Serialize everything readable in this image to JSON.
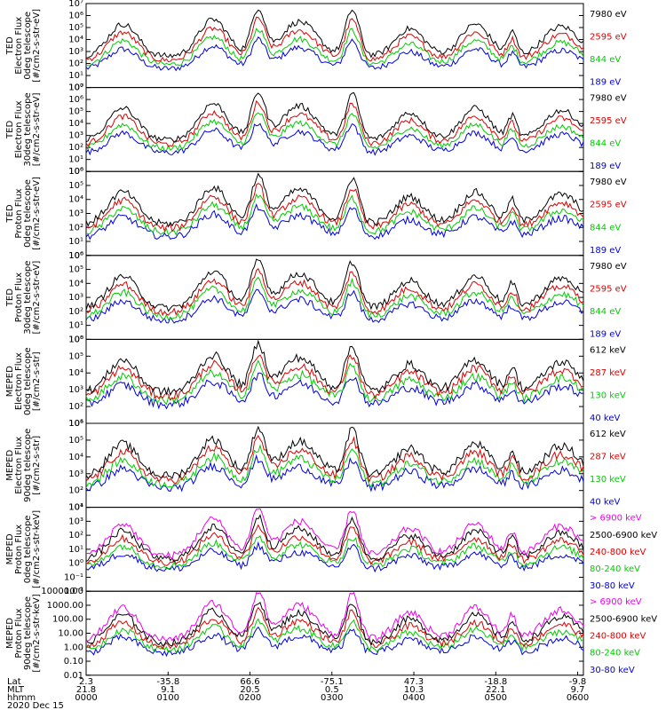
{
  "chart_data": {
    "type": "line",
    "date_label": "2020 Dec 15",
    "x_axis": {
      "rows": [
        {
          "name": "Lat",
          "values": [
            "2.3",
            "-35.8",
            "66.6",
            "-75.1",
            "47.3",
            "-18.8",
            "-9.8"
          ]
        },
        {
          "name": "MLT",
          "values": [
            "21.8",
            "9.1",
            "20.5",
            "0.5",
            "10.3",
            "22.1",
            "9.7"
          ]
        },
        {
          "name": "hhmm",
          "values": [
            "0000",
            "0100",
            "0200",
            "0300",
            "0400",
            "0500",
            "0600"
          ]
        }
      ],
      "hours": [
        0,
        1,
        2,
        3,
        4,
        5,
        6
      ]
    },
    "panels": [
      {
        "ylabel": [
          "TED",
          "Electron Flux",
          "0deg telescope",
          "[#/cm2-s-str-eV]"
        ],
        "scale": "log",
        "ylim_exp": [
          0,
          7
        ],
        "ticks": [
          "10⁰",
          "10¹",
          "10²",
          "10³",
          "10⁴",
          "10⁵",
          "10⁶",
          "10⁷"
        ],
        "series": [
          {
            "name": "7980 eV",
            "color": "#000000"
          },
          {
            "name": "2595 eV",
            "color": "#dd0000"
          },
          {
            "name": "844 eV",
            "color": "#00cc00"
          },
          {
            "name": "189 eV",
            "color": "#0000dd"
          }
        ]
      },
      {
        "ylabel": [
          "TED",
          "Electron Flux",
          "30deg telescope",
          "[#/cm2-s-str-eV]"
        ],
        "scale": "log",
        "ylim_exp": [
          0,
          7
        ],
        "ticks": [
          "10⁰",
          "10¹",
          "10²",
          "10³",
          "10⁴",
          "10⁵",
          "10⁶",
          "10⁷"
        ],
        "series": [
          {
            "name": "7980 eV",
            "color": "#000000"
          },
          {
            "name": "2595 eV",
            "color": "#dd0000"
          },
          {
            "name": "844 eV",
            "color": "#00cc00"
          },
          {
            "name": "189 eV",
            "color": "#0000dd"
          }
        ]
      },
      {
        "ylabel": [
          "TED",
          "Proton Flux",
          "0deg telescope",
          "[#/cm2-s-str-eV]"
        ],
        "scale": "log",
        "ylim_exp": [
          0,
          6
        ],
        "ticks": [
          "10⁰",
          "10¹",
          "10²",
          "10³",
          "10⁴",
          "10⁵",
          "10⁶"
        ],
        "series": [
          {
            "name": "7980 eV",
            "color": "#000000"
          },
          {
            "name": "2595 eV",
            "color": "#dd0000"
          },
          {
            "name": "844 eV",
            "color": "#00cc00"
          },
          {
            "name": "189 eV",
            "color": "#0000dd"
          }
        ]
      },
      {
        "ylabel": [
          "TED",
          "Proton Flux",
          "30deg telescope",
          "[#/cm2-s-str-eV]"
        ],
        "scale": "log",
        "ylim_exp": [
          0,
          6
        ],
        "ticks": [
          "10⁰",
          "10¹",
          "10²",
          "10³",
          "10⁴",
          "10⁵",
          "10⁶"
        ],
        "series": [
          {
            "name": "7980 eV",
            "color": "#000000"
          },
          {
            "name": "2595 eV",
            "color": "#dd0000"
          },
          {
            "name": "844 eV",
            "color": "#00cc00"
          },
          {
            "name": "189 eV",
            "color": "#0000dd"
          }
        ]
      },
      {
        "ylabel": [
          "MEPED",
          "Electron Flux",
          "0deg telescope",
          "[#/cm2-s-str]"
        ],
        "scale": "log",
        "ylim_exp": [
          1,
          6
        ],
        "ticks": [
          "10¹",
          "10²",
          "10³",
          "10⁴",
          "10⁵",
          "10⁶"
        ],
        "series": [
          {
            "name": "612 keV",
            "color": "#000000"
          },
          {
            "name": "287 keV",
            "color": "#dd0000"
          },
          {
            "name": "130 keV",
            "color": "#00cc00"
          },
          {
            "name": "40 keV",
            "color": "#0000dd"
          }
        ]
      },
      {
        "ylabel": [
          "MEPED",
          "Electron Flux",
          "90deg telescope",
          "[#/cm2-s-str]"
        ],
        "scale": "log",
        "ylim_exp": [
          1,
          6
        ],
        "ticks": [
          "10¹",
          "10²",
          "10³",
          "10⁴",
          "10⁵",
          "10⁶"
        ],
        "series": [
          {
            "name": "612 keV",
            "color": "#000000"
          },
          {
            "name": "287 keV",
            "color": "#dd0000"
          },
          {
            "name": "130 keV",
            "color": "#00cc00"
          },
          {
            "name": "40 keV",
            "color": "#0000dd"
          }
        ]
      },
      {
        "ylabel": [
          "MEPED",
          "Proton Flux",
          "0deg telescope",
          "[#/cm2-s-str-keV]"
        ],
        "scale": "log",
        "ylim_exp": [
          -2,
          4
        ],
        "ticks": [
          "10⁻²",
          "10⁻¹",
          "10⁰",
          "10¹",
          "10²",
          "10³",
          "10⁴"
        ],
        "series": [
          {
            "name": "> 6900 keV",
            "color": "#ee00ee"
          },
          {
            "name": "2500-6900 keV",
            "color": "#000000"
          },
          {
            "name": "240-800 keV",
            "color": "#dd0000"
          },
          {
            "name": "80-240 keV",
            "color": "#00cc00"
          },
          {
            "name": "30-80 keV",
            "color": "#0000dd"
          }
        ]
      },
      {
        "ylabel": [
          "MEPED",
          "Proton Flux",
          "90deg telescope",
          "[#/cm2-s-str-keV]"
        ],
        "scale": "log",
        "ylim_exp": [
          -2,
          4
        ],
        "ticks": [
          "0.01",
          "0.10",
          "1.00",
          "10.00",
          "100.00",
          "1000.00",
          "10000.00"
        ],
        "series": [
          {
            "name": "> 6900 keV",
            "color": "#ee00ee"
          },
          {
            "name": "2500-6900 keV",
            "color": "#000000"
          },
          {
            "name": "240-800 keV",
            "color": "#dd0000"
          },
          {
            "name": "80-240 keV",
            "color": "#00cc00"
          },
          {
            "name": "30-80 keV",
            "color": "#0000dd"
          }
        ]
      }
    ]
  }
}
